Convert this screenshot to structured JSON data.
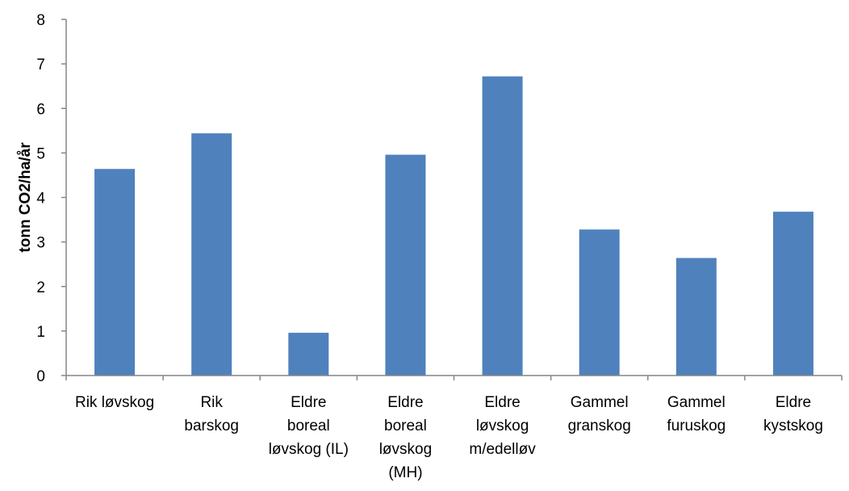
{
  "colors": {
    "bar": "#4f81bd",
    "axis": "#868686"
  },
  "chart_data": {
    "type": "bar",
    "title": "",
    "xlabel": "",
    "ylabel": "tonn CO2/ha/år",
    "ylim": [
      0,
      8
    ],
    "yticks": [
      "0",
      "1",
      "2",
      "3",
      "4",
      "5",
      "6",
      "7",
      "8"
    ],
    "grid": false,
    "legend": "none",
    "categories": [
      [
        "Rik løvskog"
      ],
      [
        "Rik",
        "barskog"
      ],
      [
        "Eldre",
        "boreal",
        "løvskog (IL)"
      ],
      [
        "Eldre",
        "boreal",
        "løvskog",
        "(MH)"
      ],
      [
        "Eldre",
        "løvskog",
        "m/edelløv"
      ],
      [
        "Gammel",
        "granskog"
      ],
      [
        "Gammel",
        "furuskog"
      ],
      [
        "Eldre",
        "kystskog"
      ]
    ],
    "values": [
      4.64,
      5.44,
      0.96,
      4.96,
      6.72,
      3.28,
      2.64,
      3.68
    ]
  }
}
